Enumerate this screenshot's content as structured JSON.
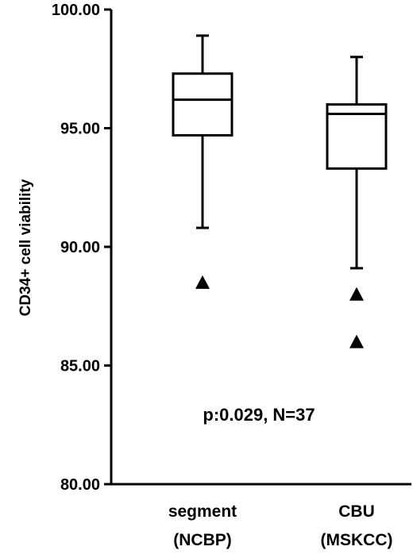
{
  "chart_data": {
    "type": "boxplot",
    "title": "",
    "xlabel": "",
    "ylabel": "CD34+ cell viability",
    "ylim": [
      80,
      100
    ],
    "y_ticks": [
      "80.00",
      "85.00",
      "90.00",
      "95.00",
      "100.00"
    ],
    "y_tick_values": [
      80,
      85,
      90,
      95,
      100
    ],
    "grid": false,
    "categories": [
      {
        "line1": "segment",
        "line2": "(NCBP)"
      },
      {
        "line1": "CBU",
        "line2": "(MSKCC)"
      }
    ],
    "boxes": [
      {
        "whisker_low": 90.8,
        "q1": 94.7,
        "median": 96.2,
        "q3": 97.3,
        "whisker_high": 98.9,
        "outliers": [
          88.5
        ]
      },
      {
        "whisker_low": 89.1,
        "q1": 93.3,
        "median": 95.6,
        "q3": 96.0,
        "whisker_high": 98.0,
        "outliers": [
          88.0,
          86.0
        ]
      }
    ],
    "annotation": "p:0.029, N=37",
    "colors": {
      "stroke": "#000000",
      "box_fill": "#ffffff",
      "marker": "#000000"
    }
  }
}
